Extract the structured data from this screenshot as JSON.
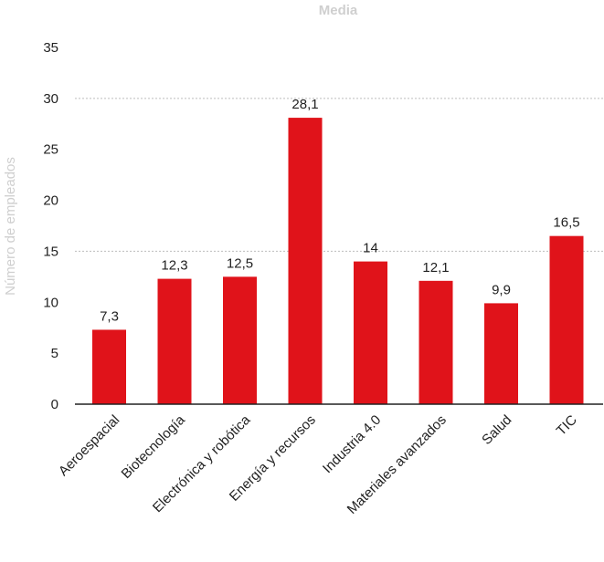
{
  "chart_data": {
    "type": "bar",
    "title": "Media",
    "xlabel": "",
    "ylabel": "Número de empleados",
    "categories": [
      "Aeroespacial",
      "Biotecnología",
      "Electrónica y robótica",
      "Energía y recursos",
      "Industria 4.0",
      "Materiales avanzados",
      "Salud",
      "TIC"
    ],
    "values": [
      7.3,
      12.3,
      12.5,
      28.1,
      14,
      12.1,
      9.9,
      16.5
    ],
    "value_labels": [
      "7,3",
      "12,3",
      "12,5",
      "28,1",
      "14",
      "12,1",
      "9,9",
      "16,5"
    ],
    "ylim": [
      0,
      35
    ],
    "yticks": [
      0,
      5,
      10,
      15,
      20,
      25,
      30,
      35
    ],
    "ytick_labels": [
      "0",
      "5",
      "10",
      "15",
      "20",
      "25",
      "30",
      "35"
    ],
    "gridlines_at": [
      15,
      30
    ],
    "grid": true,
    "legend": "none",
    "bar_color": "#e0131a",
    "axis_color": "#222222",
    "grid_color": "#bdbdbd"
  }
}
